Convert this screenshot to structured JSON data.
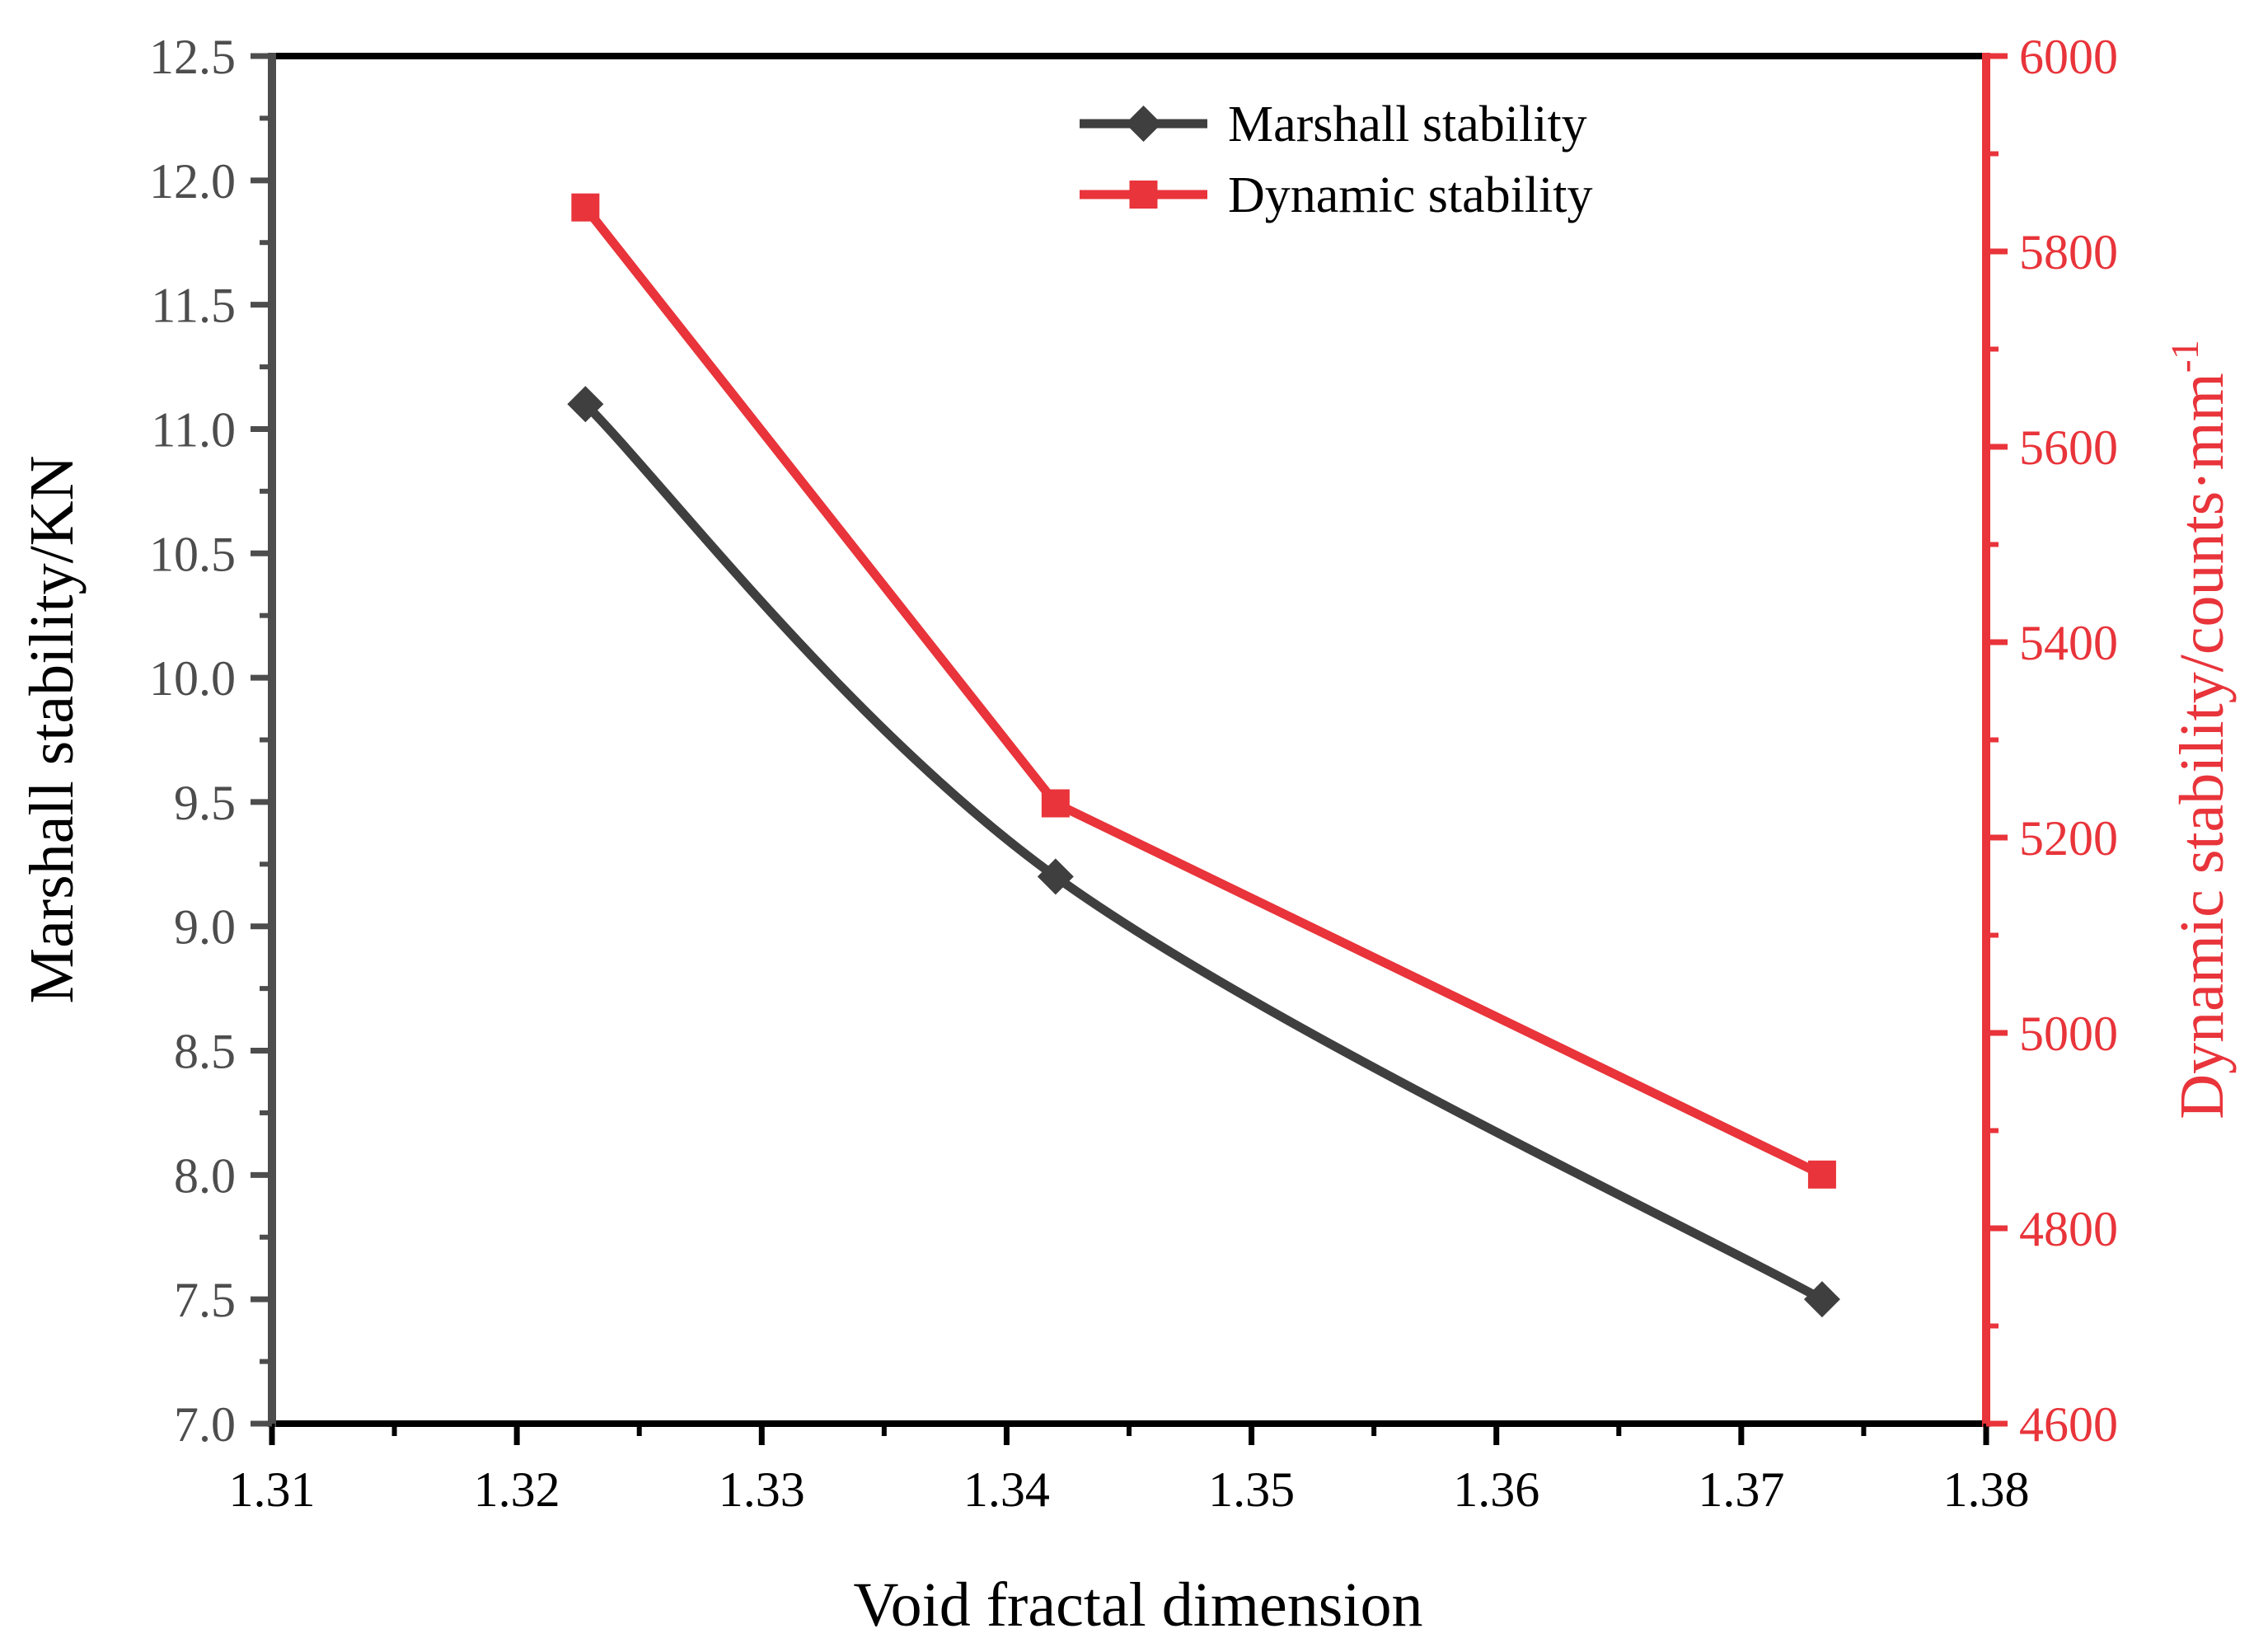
{
  "chart_data": {
    "type": "line",
    "title": "",
    "xlabel": "Void fractal dimension",
    "ylabel_left": "Marshall stability/KN",
    "ylabel_right_main": "Dynamic stability/counts·mm",
    "ylabel_right_sup": "-1",
    "xlim": [
      1.31,
      1.38
    ],
    "ylim_left": [
      7.0,
      12.5
    ],
    "ylim_right": [
      4600,
      6000
    ],
    "x_ticks": [
      "1.31",
      "1.32",
      "1.33",
      "1.34",
      "1.35",
      "1.36",
      "1.37",
      "1.38"
    ],
    "y_left_ticks": [
      "7.0",
      "7.5",
      "8.0",
      "8.5",
      "9.0",
      "9.5",
      "10.0",
      "10.5",
      "11.0",
      "11.5",
      "12.0",
      "12.5"
    ],
    "y_right_ticks": [
      "4600",
      "4800",
      "5000",
      "5200",
      "5400",
      "5600",
      "5800",
      "6000"
    ],
    "legend_position": "top-center",
    "series": [
      {
        "name": "Marshall stability",
        "axis": "left",
        "marker": "diamond",
        "color": "#3f3f3f",
        "smooth": true,
        "x": [
          1.3228,
          1.342,
          1.3733
        ],
        "y": [
          11.1,
          9.2,
          7.5
        ]
      },
      {
        "name": "Dynamic stability",
        "axis": "right",
        "marker": "square",
        "color": "#e8343a",
        "smooth": false,
        "x": [
          1.3228,
          1.342,
          1.3733
        ],
        "y": [
          5845,
          5235,
          4855
        ]
      }
    ],
    "colors": {
      "left_axis": "#4d4d4d",
      "right_axis": "#e8343a",
      "frame": "#000000"
    }
  }
}
